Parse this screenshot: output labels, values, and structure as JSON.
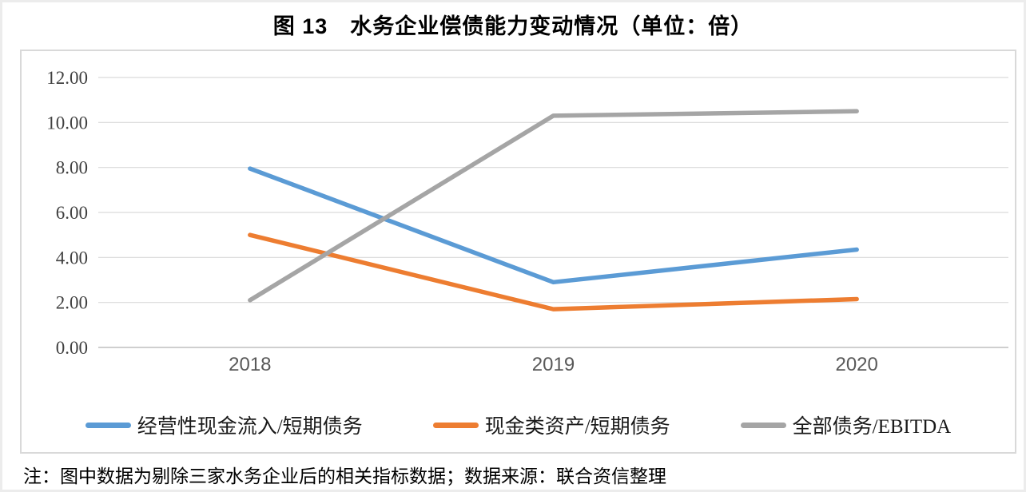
{
  "title": "图 13　水务企业偿债能力变动情况（单位：倍）",
  "note": "注：图中数据为剔除三家水务企业后的相关指标数据；数据来源：联合资信整理",
  "colors": {
    "series_blue": "#5B9BD5",
    "series_orange": "#ED7D31",
    "series_gray": "#A5A5A5",
    "gridline": "#D9D9D9",
    "axis_line": "#BFBFBF",
    "ytick_label": "#404040",
    "xtick_label": "#595959",
    "frame_border": "#D9D9D9"
  },
  "chart_data": {
    "type": "line",
    "title": "图 13　水务企业偿债能力变动情况（单位：倍）",
    "categories": [
      "2018",
      "2019",
      "2020"
    ],
    "series": [
      {
        "name": "经营性现金流入/短期债务",
        "color": "#5B9BD5",
        "values": [
          7.95,
          2.9,
          4.35
        ]
      },
      {
        "name": "现金类资产/短期债务",
        "color": "#ED7D31",
        "values": [
          5.0,
          1.7,
          2.15
        ]
      },
      {
        "name": "全部债务/EBITDA",
        "color": "#A5A5A5",
        "values": [
          2.1,
          10.3,
          10.5
        ]
      }
    ],
    "xlabel": "",
    "ylabel": "",
    "ylim": [
      0,
      12
    ],
    "ytick_step": 2,
    "ytick_decimals": 2,
    "grid": true,
    "legend_position": "bottom"
  }
}
